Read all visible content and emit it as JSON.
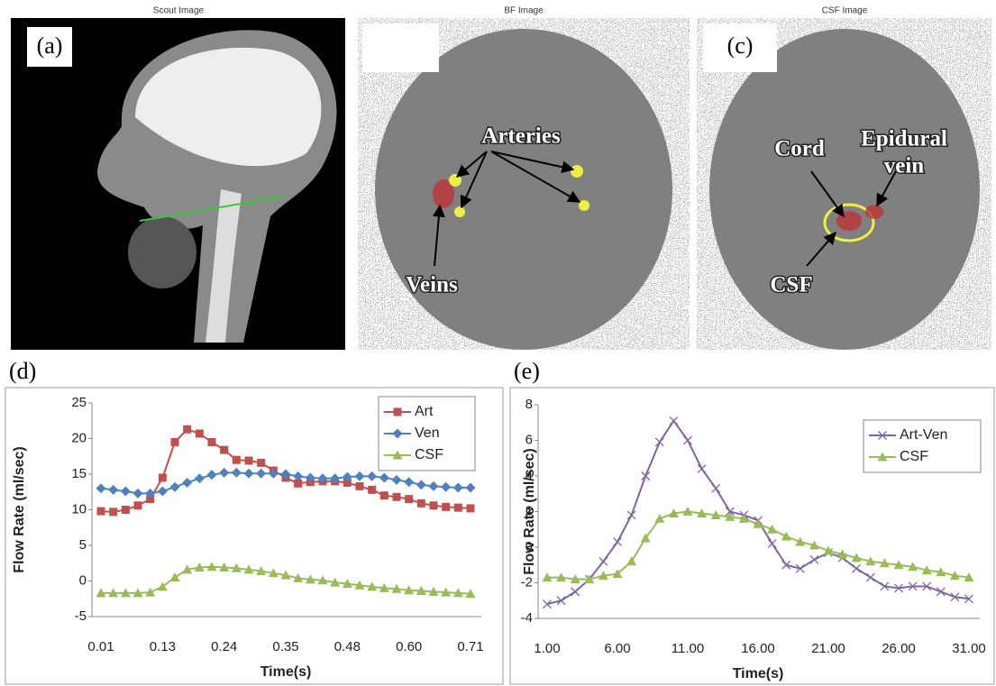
{
  "images": [
    {
      "title": "Scout Image",
      "label": "(a)"
    },
    {
      "title": "BF Image",
      "annotations": [
        "Arteries",
        "Veins"
      ]
    },
    {
      "title": "CSF Image",
      "label": "(c)",
      "annotations": [
        "Cord",
        "Epidural",
        "vein",
        "CSF"
      ]
    }
  ],
  "chart_data": [
    {
      "type": "line",
      "label": "(d)",
      "x_label": "Time(s)",
      "y_label": "Flow Rate (ml/sec)",
      "categories": [
        "0.01",
        null,
        null,
        null,
        null,
        "0.13",
        null,
        null,
        null,
        null,
        "0.24",
        null,
        null,
        null,
        null,
        "0.35",
        null,
        null,
        null,
        null,
        "0.48",
        null,
        null,
        null,
        null,
        "0.60",
        null,
        null,
        null,
        null,
        "0.71"
      ],
      "series": [
        {
          "name": "Art",
          "color": "#c0504d",
          "marker": "square",
          "values": [
            9.8,
            9.7,
            10.0,
            10.6,
            11.5,
            14.5,
            19.5,
            21.3,
            20.7,
            19.5,
            18.4,
            17.0,
            16.9,
            16.6,
            15.5,
            14.5,
            13.7,
            13.9,
            14.0,
            14.0,
            13.8,
            13.3,
            12.8,
            12.0,
            11.8,
            11.5,
            10.9,
            10.6,
            10.4,
            10.3,
            10.2
          ]
        },
        {
          "name": "Ven",
          "color": "#4f81bd",
          "marker": "diamond",
          "values": [
            13.0,
            12.8,
            12.6,
            12.3,
            12.3,
            12.6,
            13.2,
            13.8,
            14.4,
            14.9,
            15.2,
            15.2,
            15.1,
            15.1,
            15.1,
            15.0,
            14.7,
            14.5,
            14.4,
            14.4,
            14.6,
            14.7,
            14.7,
            14.5,
            14.2,
            13.9,
            13.5,
            13.3,
            13.2,
            13.1,
            13.1
          ]
        },
        {
          "name": "CSF",
          "color": "#9bbb59",
          "marker": "triangle",
          "values": [
            -1.7,
            -1.7,
            -1.7,
            -1.7,
            -1.6,
            -0.8,
            0.5,
            1.6,
            1.9,
            2.0,
            1.9,
            1.8,
            1.6,
            1.4,
            1.1,
            0.8,
            0.4,
            0.2,
            0.1,
            -0.2,
            -0.4,
            -0.6,
            -0.8,
            -1.0,
            -1.1,
            -1.3,
            -1.4,
            -1.5,
            -1.6,
            -1.7,
            -1.8
          ]
        }
      ],
      "ylim": [
        -5,
        25
      ],
      "yticks": [
        -5,
        0,
        5,
        10,
        15,
        20,
        25
      ],
      "grid": false,
      "legend": "top-right"
    },
    {
      "type": "line",
      "label": "(e)",
      "x_label": "Time(s)",
      "y_label": "Flow Rate (ml/sec)",
      "categories": [
        "1.00",
        null,
        null,
        null,
        null,
        "6.00",
        null,
        null,
        null,
        null,
        "11.00",
        null,
        null,
        null,
        null,
        "16.00",
        null,
        null,
        null,
        null,
        "21.00",
        null,
        null,
        null,
        null,
        "26.00",
        null,
        null,
        null,
        null,
        "31.00"
      ],
      "series": [
        {
          "name": "Art-Ven",
          "color": "#8064a2",
          "marker": "x",
          "values": [
            -3.2,
            -3.0,
            -2.5,
            -1.8,
            -0.8,
            0.3,
            1.8,
            4.0,
            5.9,
            7.1,
            6.0,
            4.4,
            3.3,
            2.0,
            1.8,
            1.5,
            0.2,
            -1.0,
            -1.2,
            -0.7,
            -0.3,
            -0.6,
            -1.2,
            -1.7,
            -2.2,
            -2.3,
            -2.2,
            -2.2,
            -2.5,
            -2.8,
            -2.9
          ]
        },
        {
          "name": "CSF",
          "color": "#9bbb59",
          "marker": "triangle",
          "values": [
            -1.7,
            -1.7,
            -1.8,
            -1.8,
            -1.6,
            -1.5,
            -0.8,
            0.5,
            1.6,
            1.9,
            2.0,
            1.9,
            1.8,
            1.7,
            1.6,
            1.3,
            1.0,
            0.6,
            0.3,
            0.1,
            -0.2,
            -0.4,
            -0.6,
            -0.8,
            -0.9,
            -1.0,
            -1.1,
            -1.3,
            -1.4,
            -1.6,
            -1.7
          ]
        }
      ],
      "ylim": [
        -4,
        8
      ],
      "yticks": [
        -4,
        -2,
        0,
        2,
        4,
        6,
        8
      ],
      "grid": false,
      "legend": "top-right"
    }
  ]
}
